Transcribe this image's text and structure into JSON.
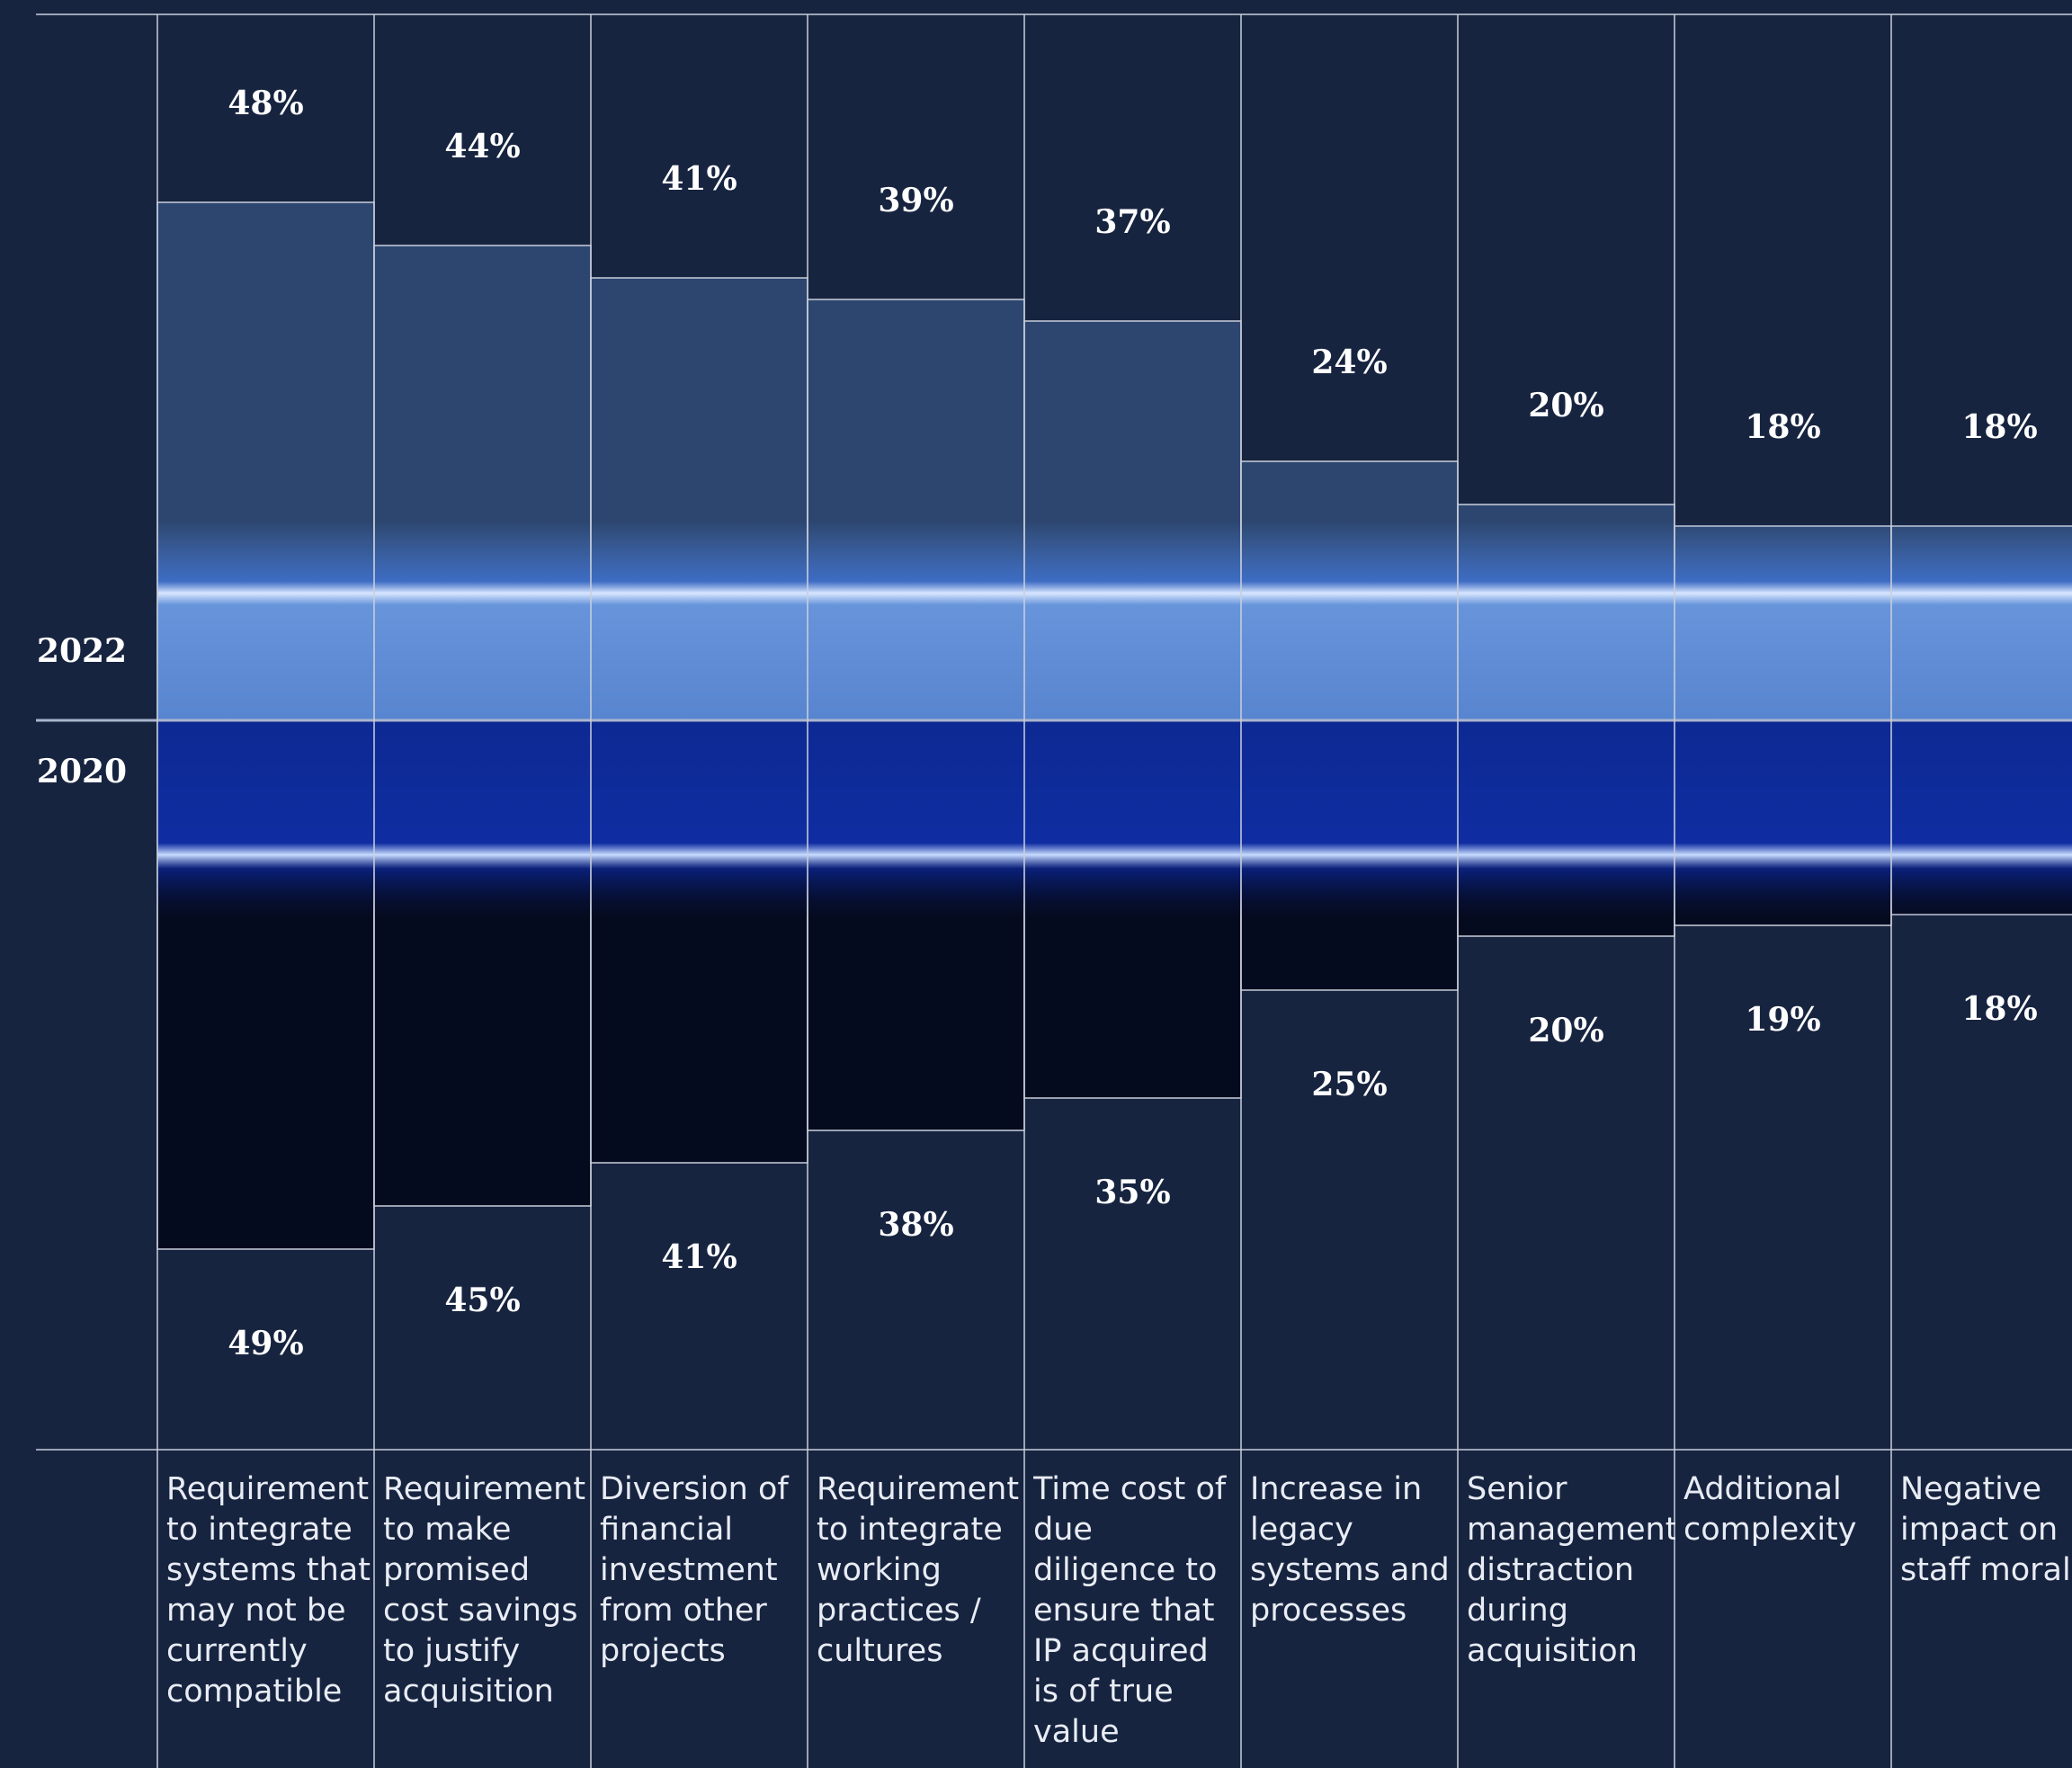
{
  "chart_data": {
    "type": "diverging-bar",
    "categories": [
      "Requirement to integrate systems that may not be currently compatible",
      "Requirement to make promised cost savings to justify acquisition",
      "Diversion of financial investment from other projects",
      "Requirement to integrate working practices / cultures",
      "Time cost of due diligence to ensure that IP acquired is of true value",
      "Increase in legacy systems and processes",
      "Senior management distraction during acquisition",
      "Additional complexity",
      "Negative impact on staff morale"
    ],
    "series": [
      {
        "name": "2022",
        "color": "#2c4670",
        "values": [
          48,
          44,
          41,
          39,
          37,
          24,
          20,
          18,
          18
        ],
        "value_labels": [
          "48%",
          "44%",
          "41%",
          "39%",
          "37%",
          "24%",
          "20%",
          "18%",
          "18%"
        ]
      },
      {
        "name": "2020",
        "color": "#050b1e",
        "values": [
          49,
          45,
          41,
          38,
          35,
          25,
          20,
          19,
          18
        ],
        "value_labels": [
          "49%",
          "45%",
          "41%",
          "38%",
          "35%",
          "25%",
          "20%",
          "19%",
          "18%"
        ]
      }
    ]
  }
}
